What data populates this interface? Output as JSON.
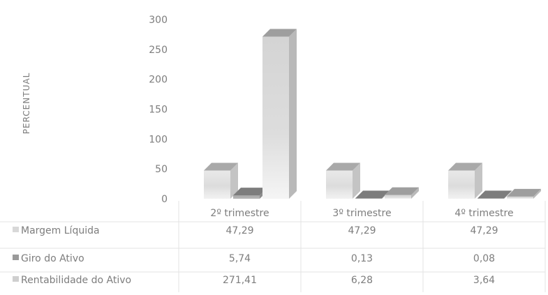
{
  "chart_data": {
    "type": "bar",
    "title": "",
    "xlabel": "",
    "ylabel": "PERCENTUAL",
    "categories": [
      "2º trimestre",
      "3º trimestre",
      "4º trimestre"
    ],
    "yticks": [
      "0",
      "50",
      "100",
      "150",
      "200",
      "250",
      "300"
    ],
    "ylim": [
      0,
      300
    ],
    "grid": false,
    "legend": "data-table",
    "series": [
      {
        "name": "Margem Líquida",
        "values": [
          47.29,
          47.29,
          47.29
        ],
        "labels": [
          "47,29",
          "47,29",
          "47,29"
        ],
        "color": "#d8d8d8"
      },
      {
        "name": "Giro do Ativo",
        "values": [
          5.74,
          0.13,
          0.08
        ],
        "labels": [
          "5,74",
          "0,13",
          "0,08"
        ],
        "color": "#9a9a9a"
      },
      {
        "name": "Rentabilidade do Ativo",
        "values": [
          271.41,
          6.28,
          3.64
        ],
        "labels": [
          "271,41",
          "6,28",
          "3,64"
        ],
        "color": "#cfcfcf"
      }
    ]
  }
}
